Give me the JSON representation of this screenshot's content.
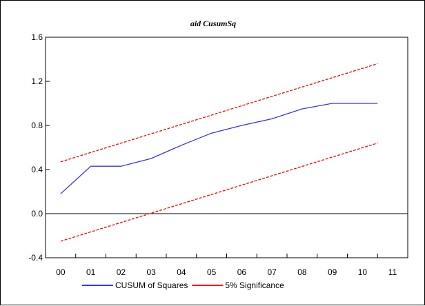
{
  "chart_data": {
    "type": "line",
    "title": "aid CusumSq",
    "xlabel": "",
    "ylabel": "",
    "categories": [
      "00",
      "01",
      "02",
      "03",
      "04",
      "05",
      "06",
      "07",
      "08",
      "09",
      "10",
      "11"
    ],
    "ylim": [
      -0.4,
      1.6
    ],
    "yticks": [
      "1.6",
      "1.2",
      "0.8",
      "0.4",
      "0.0",
      "-0.4"
    ],
    "zero_line": true,
    "grid": false,
    "legend_position": "bottom",
    "series": [
      {
        "name": "CUSUM of Squares",
        "color": "#3333ff",
        "style": "solid",
        "x": [
          0.0,
          1.0,
          2.0,
          3.0,
          4.0,
          5.0,
          6.0,
          7.0,
          8.0,
          9.0,
          9.5,
          10.5
        ],
        "values": [
          0.18,
          0.43,
          0.43,
          0.5,
          0.62,
          0.73,
          0.8,
          0.86,
          0.95,
          1.0,
          1.0,
          1.0
        ]
      },
      {
        "name": "5% Significance",
        "color": "#ff0000",
        "style": "dashed",
        "x": [
          0.0,
          10.5
        ],
        "values": [
          0.47,
          1.36
        ]
      },
      {
        "name": "",
        "color": "#ff0000",
        "style": "dashed",
        "x": [
          0.0,
          10.5
        ],
        "values": [
          -0.25,
          0.64
        ]
      }
    ]
  }
}
